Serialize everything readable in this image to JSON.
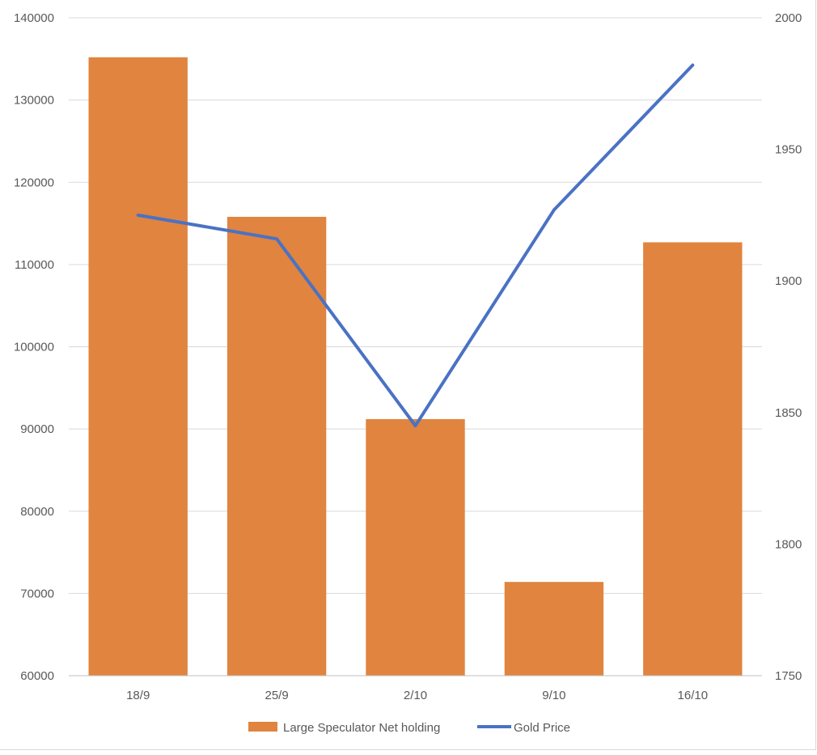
{
  "chart_data": {
    "type": "bar",
    "categories": [
      "18/9",
      "25/9",
      "2/10",
      "9/10",
      "16/10"
    ],
    "series": [
      {
        "name": "Large Speculator Net holding",
        "type": "bar",
        "axis": "left",
        "values": [
          135200,
          115800,
          91200,
          71400,
          112700
        ]
      },
      {
        "name": "Gold Price",
        "type": "line",
        "axis": "right",
        "values": [
          1925,
          1916,
          1845,
          1927,
          1982
        ]
      }
    ],
    "y_left": {
      "min": 60000,
      "max": 140000,
      "step": 10000,
      "ticks": [
        "60000",
        "70000",
        "80000",
        "90000",
        "100000",
        "110000",
        "120000",
        "130000",
        "140000"
      ]
    },
    "y_right": {
      "min": 1750,
      "max": 2000,
      "step": 50,
      "ticks": [
        "1750",
        "1800",
        "1850",
        "1900",
        "1950",
        "2000"
      ]
    },
    "grid": true,
    "legend_position": "bottom",
    "colors": {
      "bar": "#E0843F",
      "line": "#4A72C4",
      "grid": "#d9d9d9",
      "axis": "#bfbfbf",
      "text": "#595959"
    }
  }
}
